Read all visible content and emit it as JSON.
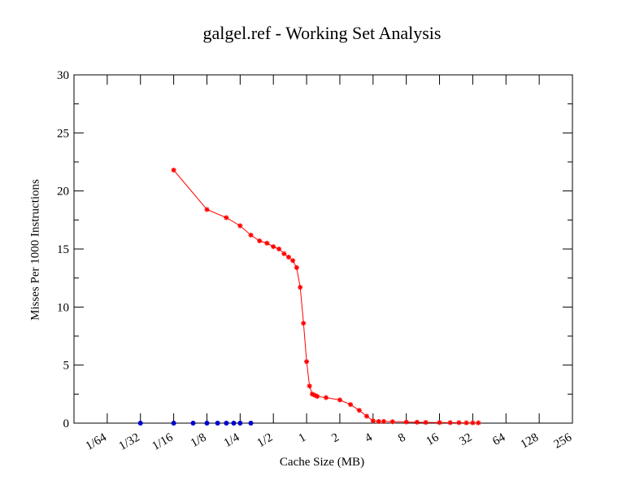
{
  "chart_data": {
    "type": "line",
    "title": "galgel.ref - Working Set Analysis",
    "xlabel": "Cache Size (MB)",
    "ylabel": "Misses Per 1000 Instructions",
    "x_scale": "log2",
    "xlim": [
      0.0078125,
      256
    ],
    "ylim": [
      0,
      30
    ],
    "x_tick_labels": [
      "1/64",
      "1/32",
      "1/16",
      "1/8",
      "1/4",
      "1/2",
      "1",
      "2",
      "4",
      "8",
      "16",
      "32",
      "64",
      "128",
      "256"
    ],
    "x_tick_values": [
      0.015625,
      0.03125,
      0.0625,
      0.125,
      0.25,
      0.5,
      1,
      2,
      4,
      8,
      16,
      32,
      64,
      128,
      256
    ],
    "y_ticks": [
      0,
      5,
      10,
      15,
      20,
      25,
      30
    ],
    "grid": false,
    "series": [
      {
        "color": "#ff0000",
        "marker": "star",
        "x": [
          0.0625,
          0.125,
          0.1875,
          0.25,
          0.3125,
          0.375,
          0.4375,
          0.5,
          0.5625,
          0.625,
          0.6875,
          0.75,
          0.8125,
          0.875,
          0.9375,
          1.0,
          1.0625,
          1.125,
          1.1875,
          1.25,
          1.5,
          2.0,
          2.5,
          3.0,
          3.5,
          4.0,
          4.5,
          5,
          6,
          8,
          10,
          12,
          16,
          20,
          24,
          28,
          32,
          36
        ],
        "y": [
          21.8,
          18.4,
          17.7,
          17.0,
          16.2,
          15.7,
          15.5,
          15.2,
          15.0,
          14.6,
          14.3,
          14.0,
          13.4,
          11.7,
          8.6,
          5.3,
          3.2,
          2.5,
          2.4,
          2.3,
          2.2,
          2.0,
          1.6,
          1.1,
          0.6,
          0.2,
          0.15,
          0.15,
          0.12,
          0.1,
          0.08,
          0.06,
          0.05,
          0.04,
          0.04,
          0.03,
          0.03,
          0.03
        ]
      },
      {
        "color": "#0000cc",
        "marker": "circle",
        "x": [
          0.03125,
          0.0625,
          0.09375,
          0.125,
          0.15625,
          0.1875,
          0.21875,
          0.25,
          0.3125
        ],
        "y": [
          0,
          0,
          0,
          0,
          0,
          0,
          0,
          0,
          0
        ]
      }
    ]
  }
}
